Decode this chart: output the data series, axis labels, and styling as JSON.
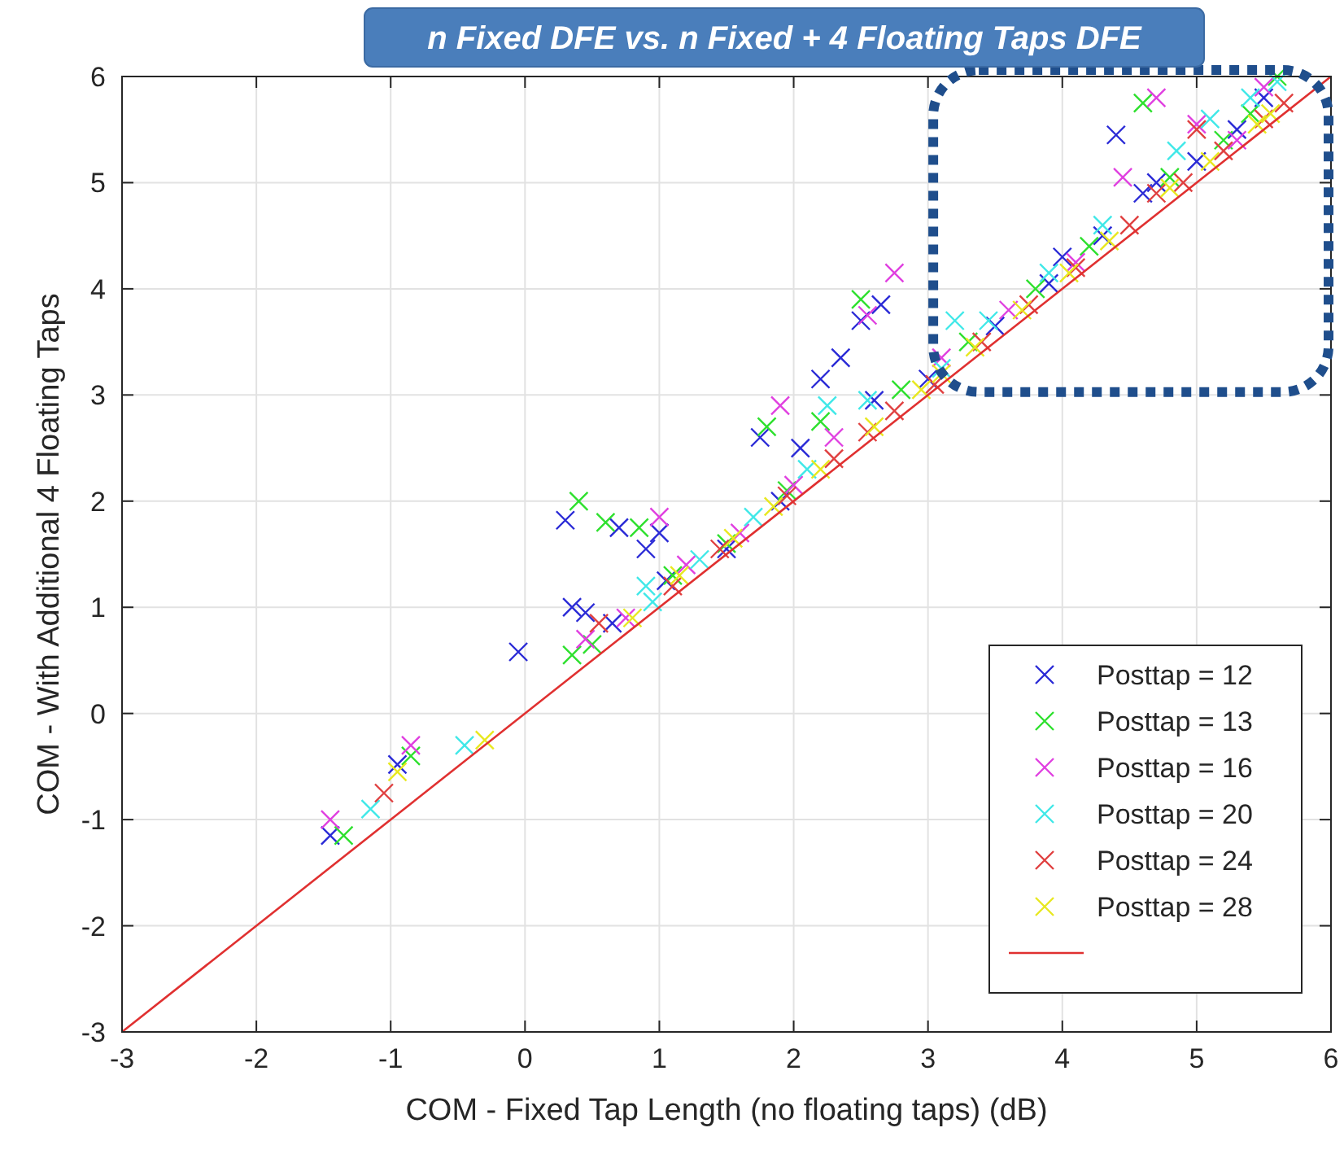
{
  "chart_data": {
    "type": "scatter",
    "title": "n Fixed DFE vs. n Fixed + 4 Floating Taps DFE",
    "xlabel": "COM - Fixed Tap Length (no floating taps) (dB)",
    "ylabel": "COM - With Additional 4 Floating Taps",
    "xlim": [
      -3,
      6
    ],
    "ylim": [
      -3,
      6
    ],
    "xticks": [
      -3,
      -2,
      -1,
      0,
      1,
      2,
      3,
      4,
      5,
      6
    ],
    "yticks": [
      -3,
      -2,
      -1,
      0,
      1,
      2,
      3,
      4,
      5,
      6
    ],
    "grid": true,
    "legend": "bottom right",
    "marker": "cross",
    "series": [
      {
        "name": "Posttap = 12",
        "color": "#2a2ad6",
        "x": [
          -1.45,
          -0.95,
          -0.05,
          0.3,
          0.35,
          0.65,
          0.7,
          0.9,
          1.0,
          0.45,
          1.05,
          1.5,
          1.75,
          1.9,
          2.2,
          2.35,
          2.5,
          2.05,
          2.65,
          2.6,
          3.0,
          3.5,
          3.9,
          4.4,
          4.3,
          4.7,
          5.0,
          5.3,
          5.5,
          4.0,
          4.6
        ],
        "values": [
          -1.15,
          -0.48,
          0.58,
          1.82,
          1.0,
          0.85,
          1.75,
          1.55,
          1.7,
          0.95,
          1.25,
          1.55,
          2.6,
          2.0,
          3.15,
          3.35,
          3.7,
          2.5,
          3.85,
          2.95,
          3.15,
          3.65,
          4.05,
          5.45,
          4.5,
          5.0,
          5.2,
          5.5,
          5.8,
          4.3,
          4.9
        ]
      },
      {
        "name": "Posttap = 13",
        "color": "#2ee02e",
        "x": [
          -1.35,
          -0.85,
          0.4,
          0.6,
          0.35,
          0.5,
          0.85,
          1.1,
          1.8,
          1.5,
          2.5,
          2.2,
          2.8,
          3.3,
          3.8,
          4.2,
          4.6,
          4.8,
          5.2,
          5.4,
          5.6,
          1.95
        ],
        "values": [
          -1.15,
          -0.4,
          2.0,
          1.8,
          0.55,
          0.65,
          1.75,
          1.3,
          2.7,
          1.6,
          3.9,
          2.75,
          3.05,
          3.5,
          4.0,
          4.4,
          5.75,
          5.05,
          5.4,
          5.65,
          6.0,
          2.1
        ]
      },
      {
        "name": "Posttap = 16",
        "color": "#e040e0",
        "x": [
          -1.45,
          -0.85,
          0.45,
          1.0,
          0.75,
          1.2,
          1.9,
          1.6,
          2.55,
          2.75,
          2.3,
          3.1,
          3.6,
          4.1,
          4.45,
          4.7,
          5.0,
          5.3,
          5.5,
          2.0
        ],
        "values": [
          -1.0,
          -0.3,
          0.7,
          1.85,
          0.9,
          1.4,
          2.9,
          1.7,
          3.75,
          4.15,
          2.6,
          3.35,
          3.8,
          4.25,
          5.05,
          5.8,
          5.55,
          5.4,
          5.9,
          2.15
        ]
      },
      {
        "name": "Posttap = 20",
        "color": "#40e8e8",
        "x": [
          -1.15,
          -0.45,
          0.9,
          1.3,
          2.25,
          2.55,
          2.1,
          3.1,
          3.45,
          3.2,
          3.9,
          4.3,
          4.85,
          5.1,
          5.4,
          5.6,
          1.7,
          0.95
        ],
        "values": [
          -0.9,
          -0.3,
          1.2,
          1.45,
          2.9,
          2.95,
          2.3,
          3.25,
          3.7,
          3.7,
          4.15,
          4.6,
          5.3,
          5.6,
          5.8,
          5.95,
          1.85,
          1.05
        ]
      },
      {
        "name": "Posttap = 24",
        "color": "#e04040",
        "x": [
          -1.05,
          0.55,
          1.1,
          1.45,
          1.95,
          2.3,
          2.75,
          3.05,
          3.4,
          3.75,
          4.1,
          4.5,
          4.9,
          5.2,
          5.5,
          5.65,
          4.7,
          2.55,
          5.0
        ],
        "values": [
          -0.75,
          0.85,
          1.2,
          1.55,
          2.05,
          2.4,
          2.85,
          3.1,
          3.5,
          3.85,
          4.2,
          4.6,
          5.0,
          5.3,
          5.6,
          5.75,
          4.9,
          2.65,
          5.5
        ]
      },
      {
        "name": "Posttap = 28",
        "color": "#e8e820",
        "x": [
          -0.95,
          -0.3,
          0.8,
          1.15,
          1.55,
          1.85,
          2.2,
          2.6,
          2.95,
          3.35,
          3.7,
          4.05,
          4.35,
          4.8,
          5.1,
          5.45,
          5.55,
          3.1
        ],
        "values": [
          -0.55,
          -0.25,
          0.9,
          1.3,
          1.65,
          1.95,
          2.3,
          2.7,
          3.05,
          3.45,
          3.8,
          4.15,
          4.45,
          4.95,
          5.2,
          5.55,
          5.65,
          3.2
        ]
      },
      {
        "type": "line",
        "marker": "none",
        "color": "#e03030",
        "x": [
          -3,
          6
        ],
        "values": [
          -3,
          6
        ]
      }
    ]
  }
}
